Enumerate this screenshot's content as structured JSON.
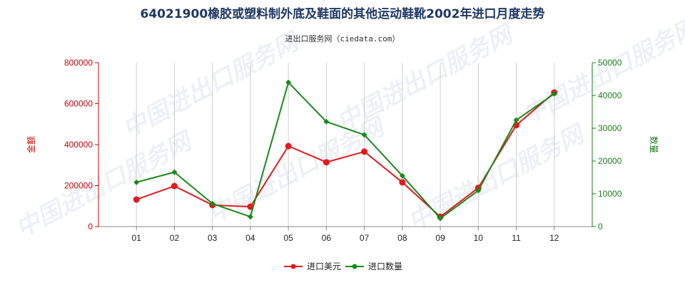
{
  "chart_data": {
    "type": "line",
    "title": "64021900橡胶或塑料制外底及鞋面的其他运动鞋靴2002年进口月度走势",
    "subtitle": "进出口服务网（ciedata.com）",
    "watermark": "中国进出口服务网",
    "categories": [
      "01",
      "02",
      "03",
      "04",
      "05",
      "06",
      "07",
      "08",
      "09",
      "10",
      "11",
      "12"
    ],
    "left_axis": {
      "label": "金额",
      "ylim": [
        0,
        800000
      ],
      "ticks": [
        0,
        200000,
        400000,
        600000,
        800000
      ],
      "color": "#cc0000"
    },
    "right_axis": {
      "label": "数量",
      "ylim": [
        0,
        50000
      ],
      "ticks": [
        0,
        10000,
        20000,
        30000,
        40000,
        50000
      ],
      "color": "#1a7f1a"
    },
    "series": [
      {
        "name": "进口美元",
        "axis": "left",
        "color": "#e31a1c",
        "values": [
          132000,
          198000,
          105000,
          97000,
          393000,
          314000,
          366000,
          216000,
          48000,
          189000,
          495000,
          654000
        ]
      },
      {
        "name": "进口数量",
        "axis": "right",
        "color": "#1a8a1a",
        "values": [
          13500,
          16600,
          7000,
          3000,
          44000,
          32000,
          28000,
          15500,
          2500,
          11000,
          32500,
          40500
        ]
      }
    ],
    "grid": "vertical",
    "legend": "bottom-center"
  }
}
